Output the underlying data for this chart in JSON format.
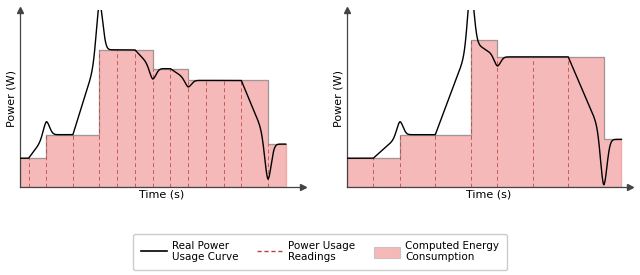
{
  "fig_width": 6.4,
  "fig_height": 2.75,
  "dpi": 100,
  "fill_color": "#F08080",
  "fill_alpha": 0.55,
  "curve_color": "#000000",
  "bar_edge_color": "#999999",
  "dashed_color": "#C04040",
  "axis_color": "#444444",
  "ylabel": "Power (W)",
  "xlabel": "Time (s)",
  "left_steps_x": [
    0.0,
    0.5,
    1.5,
    3.0,
    4.5,
    5.5,
    6.5,
    7.5,
    8.5,
    9.5,
    10.5,
    11.5,
    12.5,
    14.0,
    15.0
  ],
  "left_steps_y": [
    1.2,
    1.2,
    2.2,
    2.2,
    5.8,
    5.8,
    5.8,
    5.0,
    5.0,
    4.5,
    4.5,
    4.5,
    4.5,
    1.8,
    1.8
  ],
  "left_dashes_x": [
    0.5,
    1.5,
    3.0,
    4.5,
    5.5,
    6.5,
    7.5,
    8.5,
    9.5,
    10.5,
    11.5,
    12.5,
    14.0
  ],
  "right_steps_x": [
    0.0,
    1.5,
    3.0,
    5.0,
    7.0,
    8.5,
    10.5,
    12.5,
    14.5,
    15.5
  ],
  "right_steps_y": [
    1.2,
    1.2,
    2.2,
    2.2,
    6.2,
    5.5,
    5.5,
    5.5,
    2.0,
    2.0
  ],
  "right_dashes_x": [
    1.5,
    3.0,
    5.0,
    7.0,
    8.5,
    10.5,
    12.5
  ],
  "xlim": [
    0,
    16
  ],
  "ylim": [
    0,
    7.5
  ]
}
